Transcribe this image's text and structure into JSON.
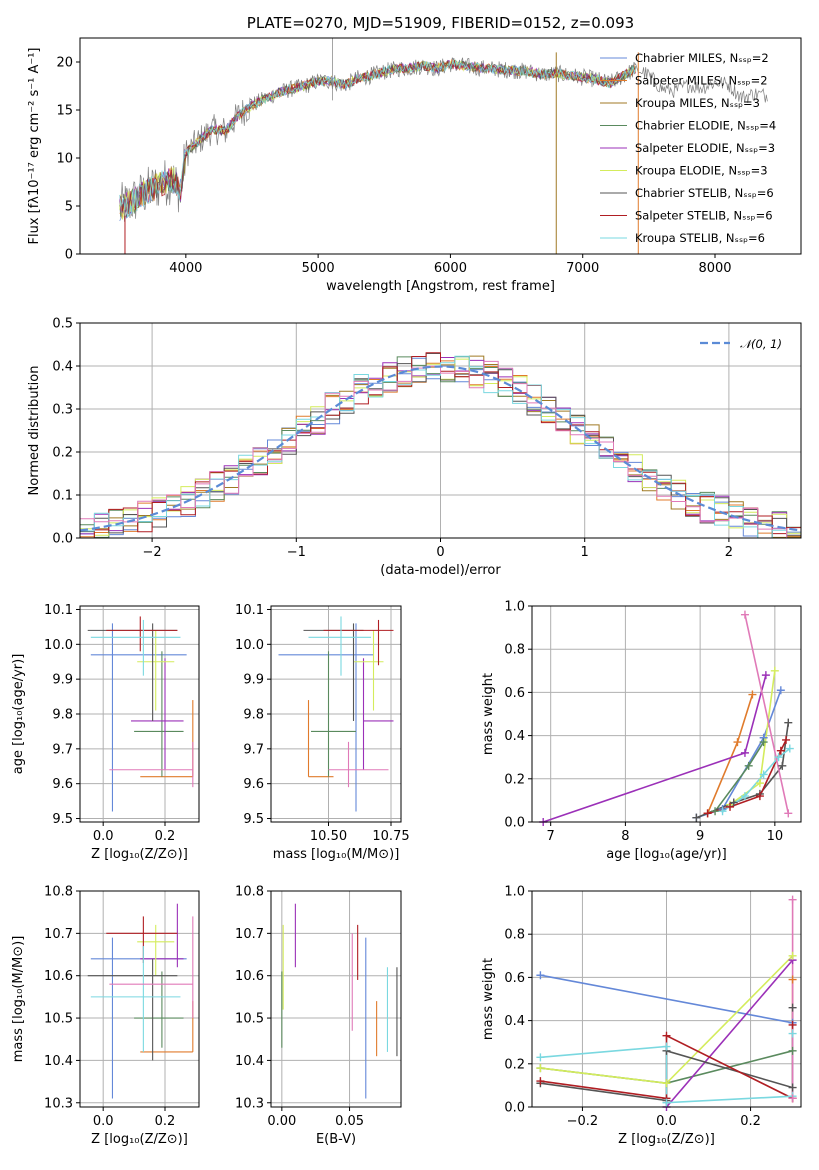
{
  "colors": {
    "chabrier_miles": "#6488d8",
    "salpeter_miles": "#e07b2c",
    "kroupa_miles": "#a07a24",
    "chabrier_elodie": "#5a8a5e",
    "salpeter_elodie": "#9b30b8",
    "kroupa_elodie": "#d4ec5c",
    "chabrier_stelib": "#555555",
    "salpeter_stelib": "#b01e23",
    "kroupa_stelib": "#7ad8e0",
    "pink": "#e07ab8",
    "gauss": "#5b8bd6"
  },
  "chart_data": [
    {
      "id": "spectrum",
      "type": "line",
      "title": "PLATE=0270, MJD=51909, FIBERID=0152, z=0.093",
      "xlabel": "wavelength [Angstrom, rest frame]",
      "ylabel": "Flux [fλ10⁻¹⁷ erg cm⁻² s⁻¹ A⁻¹]",
      "xlim": [
        3200,
        8650
      ],
      "ylim": [
        0,
        22.5
      ],
      "xticks": [
        "4000",
        "5000",
        "6000",
        "7000",
        "8000"
      ],
      "yticks": [
        "0",
        "5",
        "10",
        "15",
        "20"
      ],
      "legend_position": "top-right",
      "series": [
        {
          "name": "Chabrier MILES, Nₛₛₚ=2",
          "color_key": "chabrier_miles"
        },
        {
          "name": "Salpeter MILES, Nₛₛₚ=2",
          "color_key": "salpeter_miles"
        },
        {
          "name": "Kroupa MILES, Nₛₛₚ=3",
          "color_key": "kroupa_miles"
        },
        {
          "name": "Chabrier ELODIE, Nₛₛₚ=4",
          "color_key": "chabrier_elodie"
        },
        {
          "name": "Salpeter ELODIE, Nₛₛₚ=3",
          "color_key": "salpeter_elodie"
        },
        {
          "name": "Kroupa ELODIE, Nₛₛₚ=3",
          "color_key": "kroupa_elodie"
        },
        {
          "name": "Chabrier STELIB, Nₛₛₚ=6",
          "color_key": "chabrier_stelib"
        },
        {
          "name": "Salpeter STELIB, Nₛₛₚ=6",
          "color_key": "salpeter_stelib"
        },
        {
          "name": "Kroupa STELIB, Nₛₛₚ=6",
          "color_key": "kroupa_stelib"
        }
      ],
      "continuum": [
        [
          3500,
          4.8
        ],
        [
          3600,
          5.5
        ],
        [
          3700,
          6.5
        ],
        [
          3800,
          7.2
        ],
        [
          3900,
          7.8
        ],
        [
          3960,
          6.5
        ],
        [
          4000,
          10.5
        ],
        [
          4100,
          11.8
        ],
        [
          4200,
          13.0
        ],
        [
          4300,
          12.8
        ],
        [
          4400,
          14.5
        ],
        [
          4500,
          15.5
        ],
        [
          4600,
          16.2
        ],
        [
          4700,
          16.8
        ],
        [
          4800,
          17.2
        ],
        [
          4900,
          17.5
        ],
        [
          5000,
          18.0
        ],
        [
          5100,
          18.0
        ],
        [
          5200,
          17.6
        ],
        [
          5300,
          18.3
        ],
        [
          5400,
          18.6
        ],
        [
          5500,
          19.0
        ],
        [
          5600,
          19.3
        ],
        [
          5700,
          19.4
        ],
        [
          5800,
          19.6
        ],
        [
          5900,
          19.3
        ],
        [
          6000,
          19.8
        ],
        [
          6100,
          19.6
        ],
        [
          6200,
          19.4
        ],
        [
          6300,
          19.3
        ],
        [
          6400,
          19.2
        ],
        [
          6500,
          19.1
        ],
        [
          6600,
          19.0
        ],
        [
          6700,
          18.7
        ],
        [
          6800,
          18.8
        ],
        [
          6900,
          18.6
        ],
        [
          7000,
          18.4
        ],
        [
          7100,
          18.2
        ],
        [
          7200,
          17.8
        ],
        [
          7300,
          18.5
        ],
        [
          7400,
          19.3
        ]
      ],
      "observed_tail": [
        [
          7420,
          19.2
        ],
        [
          7500,
          18.6
        ],
        [
          7600,
          17.2
        ],
        [
          7700,
          17.0
        ],
        [
          7800,
          17.6
        ],
        [
          7900,
          17.3
        ],
        [
          8000,
          17.9
        ],
        [
          8100,
          17.7
        ],
        [
          8200,
          16.3
        ],
        [
          8300,
          16.7
        ],
        [
          8400,
          16.5
        ]
      ]
    },
    {
      "id": "residuals",
      "type": "line",
      "xlabel": "(data-model)/error",
      "ylabel": "Normed distribution",
      "xlim": [
        -2.5,
        2.5
      ],
      "ylim": [
        0,
        0.5
      ],
      "xticks": [
        "−2",
        "−1",
        "0",
        "1",
        "2"
      ],
      "yticks": [
        "0.0",
        "0.1",
        "0.2",
        "0.3",
        "0.4",
        "0.5"
      ],
      "legend_position": "top-right",
      "legend": "𝒩(0, 1)",
      "gaussian": {
        "mean": 0,
        "sigma": 1
      }
    },
    {
      "id": "age_vs_Z",
      "type": "scatter",
      "xlabel": "Z [log₁₀(Z/Z⊙)]",
      "ylabel": "age  [log₁₀(age/yr)]",
      "xlim": [
        -0.075,
        0.31
      ],
      "ylim": [
        9.49,
        10.11
      ],
      "xticks": [
        "0.0",
        "0.2"
      ],
      "yticks": [
        "9.5",
        "9.6",
        "9.7",
        "9.8",
        "9.9",
        "10.0",
        "10.1"
      ],
      "points": [
        {
          "c": "chabrier_miles",
          "x": 0.03,
          "xlo": -0.04,
          "xhi": 0.27,
          "y": 9.97,
          "ylo": 9.52,
          "yhi": 10.06
        },
        {
          "c": "salpeter_miles",
          "x": 0.29,
          "xlo": 0.12,
          "xhi": 0.29,
          "y": 9.62,
          "ylo": 9.62,
          "yhi": 9.84
        },
        {
          "c": "chabrier_elodie",
          "x": 0.19,
          "xlo": 0.1,
          "xhi": 0.26,
          "y": 9.75,
          "ylo": 9.62,
          "yhi": 9.98
        },
        {
          "c": "salpeter_elodie",
          "x": 0.2,
          "xlo": 0.09,
          "xhi": 0.26,
          "y": 9.78,
          "ylo": 9.64,
          "yhi": 9.96
        },
        {
          "c": "kroupa_elodie",
          "x": 0.17,
          "xlo": 0.11,
          "xhi": 0.23,
          "y": 9.95,
          "ylo": 9.81,
          "yhi": 10.04
        },
        {
          "c": "chabrier_stelib",
          "x": 0.16,
          "xlo": -0.05,
          "xhi": 0.24,
          "y": 10.04,
          "ylo": 9.78,
          "yhi": 10.06
        },
        {
          "c": "salpeter_stelib",
          "x": 0.12,
          "xlo": 0.01,
          "xhi": 0.24,
          "y": 10.04,
          "ylo": 9.98,
          "yhi": 10.08
        },
        {
          "c": "kroupa_stelib",
          "x": 0.13,
          "xlo": -0.04,
          "xhi": 0.25,
          "y": 10.02,
          "ylo": 9.91,
          "yhi": 10.07
        },
        {
          "c": "pink",
          "x": 0.29,
          "xlo": 0.02,
          "xhi": 0.29,
          "y": 9.64,
          "ylo": 9.59,
          "yhi": 9.72
        }
      ]
    },
    {
      "id": "age_vs_mass",
      "type": "scatter",
      "xlabel": "mass [log₁₀(M/M⊙)]",
      "xlim": [
        10.27,
        10.79
      ],
      "ylim": [
        9.49,
        10.11
      ],
      "xticks": [
        "10.50",
        "10.75"
      ],
      "yticks": [
        "9.5",
        "9.6",
        "9.7",
        "9.8",
        "9.9",
        "10.0",
        "10.1"
      ],
      "points": [
        {
          "c": "chabrier_miles",
          "x": 10.61,
          "xlo": 10.3,
          "xhi": 10.68,
          "y": 9.97,
          "ylo": 9.52,
          "yhi": 10.06
        },
        {
          "c": "salpeter_miles",
          "x": 10.42,
          "xlo": 10.42,
          "xhi": 10.52,
          "y": 9.62,
          "ylo": 9.62,
          "yhi": 9.84
        },
        {
          "c": "chabrier_elodie",
          "x": 10.5,
          "xlo": 10.43,
          "xhi": 10.61,
          "y": 9.75,
          "ylo": 9.62,
          "yhi": 9.98
        },
        {
          "c": "salpeter_elodie",
          "x": 10.64,
          "xlo": 10.64,
          "xhi": 10.76,
          "y": 9.78,
          "ylo": 9.64,
          "yhi": 9.96
        },
        {
          "c": "kroupa_elodie",
          "x": 10.68,
          "xlo": 10.6,
          "xhi": 10.72,
          "y": 9.95,
          "ylo": 9.81,
          "yhi": 10.04
        },
        {
          "c": "chabrier_stelib",
          "x": 10.6,
          "xlo": 10.4,
          "xhi": 10.64,
          "y": 10.04,
          "ylo": 9.78,
          "yhi": 10.06
        },
        {
          "c": "salpeter_stelib",
          "x": 10.7,
          "xlo": 10.48,
          "xhi": 10.76,
          "y": 10.04,
          "ylo": 9.94,
          "yhi": 10.07
        },
        {
          "c": "kroupa_stelib",
          "x": 10.55,
          "xlo": 10.42,
          "xhi": 10.67,
          "y": 10.02,
          "ylo": 9.91,
          "yhi": 10.08
        },
        {
          "c": "pink",
          "x": 10.58,
          "xlo": 10.5,
          "xhi": 10.74,
          "y": 9.64,
          "ylo": 9.59,
          "yhi": 9.72
        }
      ]
    },
    {
      "id": "weight_vs_age",
      "type": "line",
      "xlabel": "age  [log₁₀(age/yr)]",
      "ylabel": "mass weight",
      "xlim": [
        6.75,
        10.35
      ],
      "ylim": [
        0,
        1.0
      ],
      "xticks": [
        "7",
        "8",
        "9",
        "10"
      ],
      "yticks": [
        "0.0",
        "0.2",
        "0.4",
        "0.6",
        "0.8",
        "1.0"
      ],
      "series": [
        {
          "c": "chabrier_miles",
          "pts": [
            [
              8.95,
              0.02
            ],
            [
              9.3,
              0.06
            ],
            [
              9.85,
              0.39
            ],
            [
              10.08,
              0.61
            ]
          ]
        },
        {
          "c": "salpeter_miles",
          "pts": [
            [
              9.1,
              0.04
            ],
            [
              9.5,
              0.37
            ],
            [
              9.7,
              0.59
            ]
          ]
        },
        {
          "c": "chabrier_elodie",
          "pts": [
            [
              9.2,
              0.05
            ],
            [
              9.65,
              0.26
            ],
            [
              9.85,
              0.37
            ]
          ]
        },
        {
          "c": "salpeter_elodie",
          "pts": [
            [
              6.9,
              0.0
            ],
            [
              9.6,
              0.32
            ],
            [
              9.88,
              0.68
            ]
          ]
        },
        {
          "c": "kroupa_elodie",
          "pts": [
            [
              9.4,
              0.08
            ],
            [
              9.8,
              0.18
            ],
            [
              10.0,
              0.7
            ]
          ]
        },
        {
          "c": "chabrier_stelib",
          "pts": [
            [
              8.95,
              0.02
            ],
            [
              9.45,
              0.09
            ],
            [
              9.8,
              0.13
            ],
            [
              10.1,
              0.26
            ],
            [
              10.18,
              0.46
            ]
          ]
        },
        {
          "c": "salpeter_stelib",
          "pts": [
            [
              9.1,
              0.04
            ],
            [
              9.4,
              0.07
            ],
            [
              9.8,
              0.12
            ],
            [
              10.08,
              0.33
            ],
            [
              10.15,
              0.38
            ]
          ]
        },
        {
          "c": "kroupa_stelib",
          "pts": [
            [
              9.3,
              0.05
            ],
            [
              9.6,
              0.12
            ],
            [
              9.85,
              0.22
            ],
            [
              10.05,
              0.3
            ],
            [
              10.2,
              0.34
            ]
          ]
        },
        {
          "c": "pink",
          "pts": [
            [
              9.6,
              0.96
            ],
            [
              10.18,
              0.04
            ]
          ]
        }
      ]
    },
    {
      "id": "mass_vs_Z",
      "type": "scatter",
      "xlabel": "Z [log₁₀(Z/Z⊙)]",
      "ylabel": "mass [log₁₀(M/M⊙)]",
      "xlim": [
        -0.075,
        0.31
      ],
      "ylim": [
        10.29,
        10.8
      ],
      "xticks": [
        "0.0",
        "0.2"
      ],
      "yticks": [
        "10.3",
        "10.4",
        "10.5",
        "10.6",
        "10.7",
        "10.8"
      ],
      "points": [
        {
          "c": "chabrier_miles",
          "x": 0.03,
          "xlo": -0.04,
          "xhi": 0.27,
          "y": 10.64,
          "ylo": 10.31,
          "yhi": 10.69
        },
        {
          "c": "salpeter_miles",
          "x": 0.29,
          "xlo": 0.12,
          "xhi": 0.29,
          "y": 10.42,
          "ylo": 10.42,
          "yhi": 10.54
        },
        {
          "c": "chabrier_elodie",
          "x": 0.19,
          "xlo": 0.1,
          "xhi": 0.26,
          "y": 10.5,
          "ylo": 10.43,
          "yhi": 10.61
        },
        {
          "c": "salpeter_elodie",
          "x": 0.24,
          "xlo": 0.12,
          "xhi": 0.26,
          "y": 10.64,
          "ylo": 10.62,
          "yhi": 10.77
        },
        {
          "c": "kroupa_elodie",
          "x": 0.17,
          "xlo": 0.11,
          "xhi": 0.23,
          "y": 10.68,
          "ylo": 10.6,
          "yhi": 10.72
        },
        {
          "c": "chabrier_stelib",
          "x": 0.16,
          "xlo": -0.05,
          "xhi": 0.24,
          "y": 10.6,
          "ylo": 10.4,
          "yhi": 10.64
        },
        {
          "c": "salpeter_stelib",
          "x": 0.13,
          "xlo": 0.01,
          "xhi": 0.24,
          "y": 10.7,
          "ylo": 10.63,
          "yhi": 10.74
        },
        {
          "c": "kroupa_stelib",
          "x": 0.13,
          "xlo": -0.04,
          "xhi": 0.25,
          "y": 10.55,
          "ylo": 10.42,
          "yhi": 10.67
        },
        {
          "c": "pink",
          "x": 0.29,
          "xlo": 0.02,
          "xhi": 0.29,
          "y": 10.58,
          "ylo": 10.5,
          "yhi": 10.74
        }
      ]
    },
    {
      "id": "mass_vs_ebv",
      "type": "scatter",
      "xlabel": "E(B-V)",
      "xlim": [
        -0.008,
        0.088
      ],
      "ylim": [
        10.29,
        10.8
      ],
      "xticks": [
        "0.00",
        "0.05"
      ],
      "yticks": [
        "10.3",
        "10.4",
        "10.5",
        "10.6",
        "10.7",
        "10.8"
      ],
      "points": [
        {
          "c": "chabrier_miles",
          "x": 0.062,
          "ylo": 10.31,
          "yhi": 10.69
        },
        {
          "c": "salpeter_miles",
          "x": 0.07,
          "ylo": 10.41,
          "yhi": 10.54
        },
        {
          "c": "chabrier_elodie",
          "x": 0.0,
          "ylo": 10.43,
          "yhi": 10.61
        },
        {
          "c": "salpeter_elodie",
          "x": 0.01,
          "ylo": 10.62,
          "yhi": 10.77
        },
        {
          "c": "kroupa_elodie",
          "x": 0.001,
          "ylo": 10.52,
          "yhi": 10.72
        },
        {
          "c": "chabrier_stelib",
          "x": 0.085,
          "ylo": 10.41,
          "yhi": 10.62
        },
        {
          "c": "salpeter_stelib",
          "x": 0.056,
          "ylo": 10.59,
          "yhi": 10.72
        },
        {
          "c": "kroupa_stelib",
          "x": 0.078,
          "ylo": 10.42,
          "yhi": 10.62
        },
        {
          "c": "pink",
          "x": 0.052,
          "ylo": 10.47,
          "yhi": 10.7
        }
      ]
    },
    {
      "id": "weight_vs_Z",
      "type": "line",
      "xlabel": "Z [log₁₀(Z/Z⊙)]",
      "ylabel": "mass weight",
      "xlim": [
        -0.32,
        0.32
      ],
      "ylim": [
        0,
        1.0
      ],
      "xticks": [
        "−0.2",
        "0.0",
        "0.2"
      ],
      "yticks": [
        "0.0",
        "0.2",
        "0.4",
        "0.6",
        "0.8",
        "1.0"
      ],
      "series": [
        {
          "c": "chabrier_miles",
          "pts": [
            [
              -0.3,
              0.61
            ],
            [
              0.3,
              0.39
            ]
          ]
        },
        {
          "c": "salpeter_miles",
          "pts": [
            [
              0.3,
              0.04
            ],
            [
              0.3,
              0.59
            ]
          ]
        },
        {
          "c": "chabrier_elodie",
          "pts": [
            [
              -0.3,
              0.18
            ],
            [
              0.0,
              0.11
            ],
            [
              0.3,
              0.26
            ]
          ]
        },
        {
          "c": "salpeter_elodie",
          "pts": [
            [
              0.0,
              0.0
            ],
            [
              0.3,
              0.68
            ]
          ]
        },
        {
          "c": "kroupa_elodie",
          "pts": [
            [
              -0.3,
              0.18
            ],
            [
              0.0,
              0.11
            ],
            [
              0.3,
              0.7
            ]
          ]
        },
        {
          "c": "chabrier_stelib",
          "pts": [
            [
              -0.3,
              0.11
            ],
            [
              0.0,
              0.03
            ],
            [
              0.0,
              0.26
            ],
            [
              0.3,
              0.09
            ],
            [
              0.3,
              0.46
            ]
          ]
        },
        {
          "c": "salpeter_stelib",
          "pts": [
            [
              -0.3,
              0.12
            ],
            [
              0.0,
              0.04
            ],
            [
              0.0,
              0.33
            ],
            [
              0.3,
              0.04
            ],
            [
              0.3,
              0.38
            ]
          ]
        },
        {
          "c": "kroupa_stelib",
          "pts": [
            [
              -0.3,
              0.23
            ],
            [
              0.0,
              0.28
            ],
            [
              0.0,
              0.02
            ],
            [
              0.3,
              0.05
            ],
            [
              0.3,
              0.34
            ]
          ]
        },
        {
          "c": "pink",
          "pts": [
            [
              0.3,
              0.96
            ],
            [
              0.3,
              0.04
            ]
          ]
        }
      ]
    }
  ]
}
